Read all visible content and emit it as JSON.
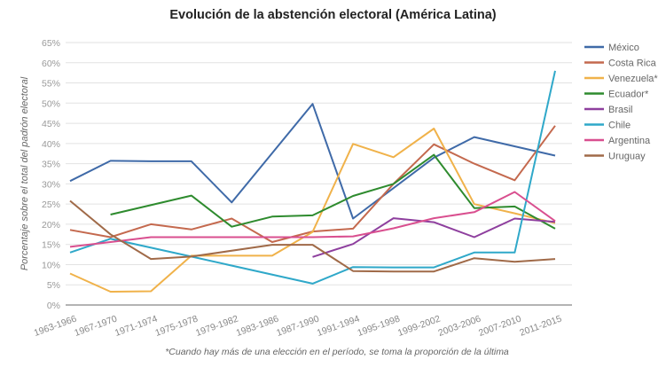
{
  "chart_data": {
    "type": "line",
    "title": "Evolución de la abstención electoral (América Latina)",
    "xlabel": "",
    "ylabel": "Porcentaje sobre el total del padrón electoral",
    "ylim": [
      0,
      65
    ],
    "yticks": [
      "0%",
      "5%",
      "10%",
      "15%",
      "20%",
      "25%",
      "30%",
      "35%",
      "40%",
      "45%",
      "50%",
      "55%",
      "60%",
      "65%"
    ],
    "ytick_values": [
      0,
      5,
      10,
      15,
      20,
      25,
      30,
      35,
      40,
      45,
      50,
      55,
      60,
      65
    ],
    "grid": true,
    "legend_position": "right",
    "footnote": "*Cuando hay más de una elección en el período, se toma la proporción de la última",
    "categories": [
      "1963-1966",
      "1967-1970",
      "1971-1974",
      "1975-1978",
      "1979-1982",
      "1983-1986",
      "1987-1990",
      "1991-1994",
      "1995-1998",
      "1999-2002",
      "2003-2006",
      "2007-2010",
      "2011-2015"
    ],
    "series": [
      {
        "name": "México",
        "color": "#3f6aa8",
        "values": [
          30.7,
          35.7,
          35.6,
          35.6,
          25.4,
          null,
          49.8,
          21.4,
          null,
          36.5,
          41.6,
          null,
          37.0
        ]
      },
      {
        "name": "Costa Rica",
        "color": "#c4694e",
        "values": [
          18.6,
          16.8,
          20.0,
          18.7,
          21.4,
          15.6,
          18.2,
          18.9,
          30.0,
          39.8,
          35.0,
          30.9,
          44.4
        ]
      },
      {
        "name": "Venezuela*",
        "color": "#f0b24a",
        "values": [
          7.8,
          3.3,
          3.4,
          12.2,
          12.2,
          12.2,
          18.1,
          39.9,
          36.6,
          43.7,
          25.0,
          22.7,
          20.3
        ]
      },
      {
        "name": "Ecuador*",
        "color": "#2e8b2e",
        "values": [
          null,
          22.4,
          null,
          27.1,
          19.4,
          21.9,
          22.2,
          27.0,
          30.0,
          37.2,
          24.0,
          24.4,
          18.9
        ]
      },
      {
        "name": "Brasil",
        "color": "#8e3f9e",
        "values": [
          null,
          null,
          null,
          null,
          null,
          null,
          11.9,
          15.1,
          21.5,
          20.5,
          16.8,
          21.4,
          20.6
        ]
      },
      {
        "name": "Chile",
        "color": "#2fa8c9",
        "values": [
          13.0,
          16.4,
          null,
          12.0,
          null,
          null,
          5.3,
          9.4,
          9.3,
          9.3,
          13.0,
          13.0,
          58.0
        ]
      },
      {
        "name": "Argentina",
        "color": "#d94f8f",
        "values": [
          14.4,
          15.6,
          16.8,
          16.8,
          16.8,
          16.8,
          16.8,
          17.0,
          19.0,
          21.5,
          23.0,
          28.0,
          20.8
        ]
      },
      {
        "name": "Uruguay",
        "color": "#a06a48",
        "values": [
          25.8,
          17.5,
          11.4,
          12.0,
          null,
          14.9,
          14.9,
          8.4,
          8.3,
          8.3,
          11.6,
          10.7,
          11.4
        ]
      }
    ]
  }
}
